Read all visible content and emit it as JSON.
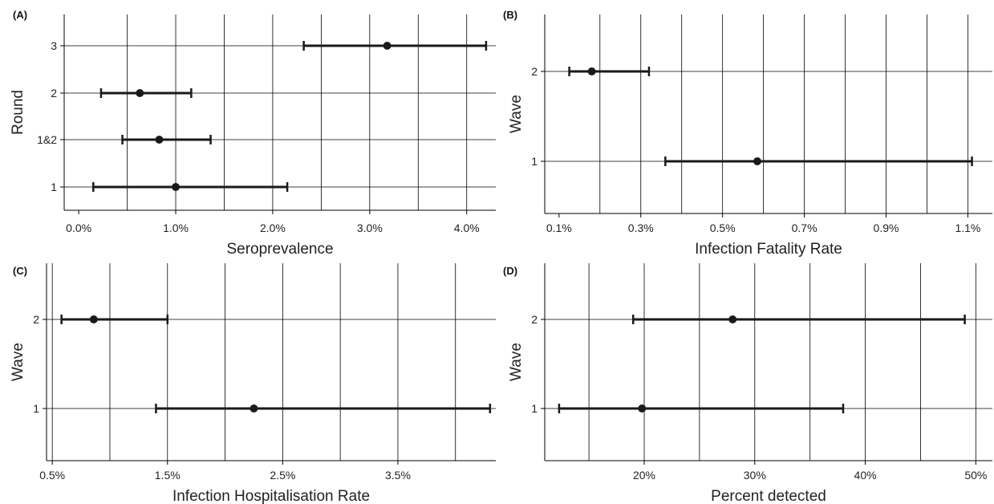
{
  "chart_data": [
    {
      "type": "scatter",
      "panel": "(A)",
      "xlabel": "Seroprevalence",
      "ylabel": "Round",
      "xlim": [
        -0.15,
        4.3
      ],
      "x_ticks": [
        {
          "v": 0.0,
          "label": "0.0%"
        },
        {
          "v": 1.0,
          "label": "1.0%"
        },
        {
          "v": 2.0,
          "label": "2.0%"
        },
        {
          "v": 3.0,
          "label": "3.0%"
        },
        {
          "v": 4.0,
          "label": "4.0%"
        }
      ],
      "x_grid": [
        0.5,
        1.0,
        1.5,
        2.0,
        2.5,
        3.0,
        3.5,
        4.0
      ],
      "categories": [
        "1",
        "1&2",
        "2",
        "3"
      ],
      "points": [
        {
          "category": "1",
          "value": 1.0,
          "lower": 0.15,
          "upper": 2.15
        },
        {
          "category": "1&2",
          "value": 0.83,
          "lower": 0.45,
          "upper": 1.36
        },
        {
          "category": "2",
          "value": 0.63,
          "lower": 0.23,
          "upper": 1.16
        },
        {
          "category": "3",
          "value": 3.18,
          "lower": 2.32,
          "upper": 4.2
        }
      ]
    },
    {
      "type": "scatter",
      "panel": "(B)",
      "xlabel": "Infection Fatality Rate",
      "ylabel": "Wave",
      "xlim": [
        0.065,
        1.16
      ],
      "x_ticks": [
        {
          "v": 0.1,
          "label": "0.1%"
        },
        {
          "v": 0.3,
          "label": "0.3%"
        },
        {
          "v": 0.5,
          "label": "0.5%"
        },
        {
          "v": 0.7,
          "label": "0.7%"
        },
        {
          "v": 0.9,
          "label": "0.9%"
        },
        {
          "v": 1.1,
          "label": "1.1%"
        }
      ],
      "x_grid": [
        0.2,
        0.3,
        0.4,
        0.5,
        0.6,
        0.7,
        0.8,
        0.9,
        1.0,
        1.1
      ],
      "categories": [
        "1",
        "2"
      ],
      "points": [
        {
          "category": "1",
          "value": 0.585,
          "lower": 0.36,
          "upper": 1.11
        },
        {
          "category": "2",
          "value": 0.18,
          "lower": 0.125,
          "upper": 0.32
        }
      ]
    },
    {
      "type": "scatter",
      "panel": "(C)",
      "xlabel": "Infection Hospitalisation Rate",
      "ylabel": "Wave",
      "xlim": [
        0.45,
        4.35
      ],
      "x_ticks": [
        {
          "v": 0.5,
          "label": "0.5%"
        },
        {
          "v": 1.5,
          "label": "1.5%"
        },
        {
          "v": 2.5,
          "label": "2.5%"
        },
        {
          "v": 3.5,
          "label": "3.5%"
        }
      ],
      "x_grid": [
        0.5,
        1.0,
        1.5,
        2.0,
        2.5,
        3.0,
        3.5,
        4.0
      ],
      "categories": [
        "1",
        "2"
      ],
      "points": [
        {
          "category": "1",
          "value": 2.25,
          "lower": 1.4,
          "upper": 4.3
        },
        {
          "category": "2",
          "value": 0.86,
          "lower": 0.58,
          "upper": 1.5
        }
      ]
    },
    {
      "type": "scatter",
      "panel": "(D)",
      "xlabel": "Percent detected",
      "ylabel": "Wave",
      "xlim": [
        11.0,
        51.5
      ],
      "x_ticks": [
        {
          "v": 20,
          "label": "20%"
        },
        {
          "v": 30,
          "label": "30%"
        },
        {
          "v": 40,
          "label": "40%"
        },
        {
          "v": 50,
          "label": "50%"
        }
      ],
      "x_grid": [
        15,
        20,
        25,
        30,
        35,
        40,
        45,
        50
      ],
      "categories": [
        "1",
        "2"
      ],
      "points": [
        {
          "category": "1",
          "value": 19.8,
          "lower": 12.3,
          "upper": 38.0
        },
        {
          "category": "2",
          "value": 28.0,
          "lower": 19.0,
          "upper": 49.0
        }
      ]
    }
  ]
}
